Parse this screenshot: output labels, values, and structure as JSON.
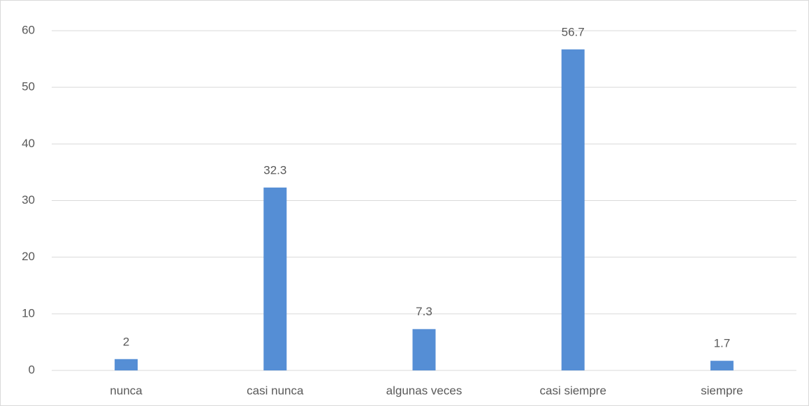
{
  "chart_data": {
    "type": "bar",
    "categories": [
      "nunca",
      "casi nunca",
      "algunas veces",
      "casi siempre",
      "siempre"
    ],
    "values": [
      2,
      32.3,
      7.3,
      56.7,
      1.7
    ],
    "color": "#558ed5",
    "ylim": [
      0,
      60
    ],
    "yticks": [
      0,
      10,
      20,
      30,
      40,
      50,
      60
    ],
    "grid": true,
    "data_labels": true
  }
}
